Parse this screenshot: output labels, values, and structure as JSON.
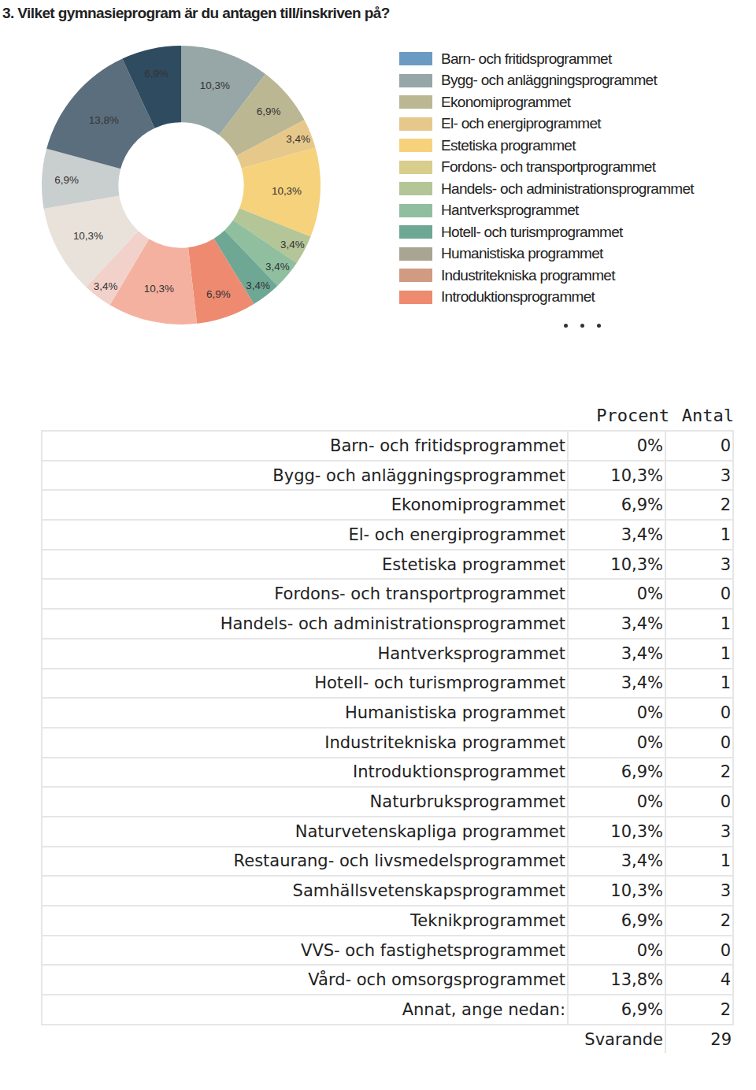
{
  "chart_data": {
    "type": "pie",
    "title": "3. Vilket gymnasieprogram är du antagen till/inskriven på?",
    "categories": [
      "Barn- och fritidsprogrammet",
      "Bygg- och anläggningsprogrammet",
      "Ekonomiprogrammet",
      "El- och energiprogrammet",
      "Estetiska programmet",
      "Fordons- och transportprogrammet",
      "Handels- och administrationsprogrammet",
      "Hantverksprogrammet",
      "Hotell- och turismprogrammet",
      "Humanistiska programmet",
      "Industritekniska programmet",
      "Introduktionsprogrammet",
      "Naturbruksprogrammet",
      "Naturvetenskapliga programmet",
      "Restaurang- och livsmedelsprogrammet",
      "Samhällsvetenskapsprogrammet",
      "Teknikprogrammet",
      "VVS- och fastighetsprogrammet",
      "Vård- och omsorgsprogrammet",
      "Annat, ange nedan:"
    ],
    "values": [
      0,
      10.3,
      6.9,
      3.4,
      10.3,
      0,
      3.4,
      3.4,
      3.4,
      0,
      0,
      6.9,
      0,
      10.3,
      3.4,
      10.3,
      6.9,
      0,
      13.8,
      6.9
    ],
    "value_labels": [
      null,
      "10,3%",
      "6,9%",
      "3,4%",
      "10,3%",
      null,
      "3,4%",
      "3,4%",
      "3,4%",
      null,
      null,
      "6,9%",
      null,
      "10,3%",
      "3,4%",
      "10,3%",
      "6,9%",
      null,
      "13,8%",
      "6,9%"
    ],
    "colors": [
      "#6b9bc3",
      "#97a6a6",
      "#bbb793",
      "#e7c88b",
      "#f6d27c",
      "#d9cd8b",
      "#b4c597",
      "#8fbf9f",
      "#6fa795",
      "#a9a593",
      "#d19a82",
      "#ee8a70",
      "#a7c9a0",
      "#f4b19f",
      "#f1d1c9",
      "#e9e2db",
      "#c9cece",
      "#8aa0b0",
      "#5b6e7d",
      "#2f4b5f"
    ],
    "data_labels": true
  },
  "table": {
    "header": [
      "Procent",
      "Antal"
    ],
    "rows": [
      [
        "Barn- och fritidsprogrammet",
        "0%",
        0
      ],
      [
        "Bygg- och anläggningsprogrammet",
        "10,3%",
        3
      ],
      [
        "Ekonomiprogrammet",
        "6,9%",
        2
      ],
      [
        "El- och energiprogrammet",
        "3,4%",
        1
      ],
      [
        "Estetiska programmet",
        "10,3%",
        3
      ],
      [
        "Fordons- och transportprogrammet",
        "0%",
        0
      ],
      [
        "Handels- och administrationsprogrammet",
        "3,4%",
        1
      ],
      [
        "Hantverksprogrammet",
        "3,4%",
        1
      ],
      [
        "Hotell- och turismprogrammet",
        "3,4%",
        1
      ],
      [
        "Humanistiska programmet",
        "0%",
        0
      ],
      [
        "Industritekniska programmet",
        "0%",
        0
      ],
      [
        "Introduktionsprogrammet",
        "6,9%",
        2
      ],
      [
        "Naturbruksprogrammet",
        "0%",
        0
      ],
      [
        "Naturvetenskapliga programmet",
        "10,3%",
        3
      ],
      [
        "Restaurang- och livsmedelsprogrammet",
        "3,4%",
        1
      ],
      [
        "Samhällsvetenskapsprogrammet",
        "10,3%",
        3
      ],
      [
        "Teknikprogrammet",
        "6,9%",
        2
      ],
      [
        "VVS- och fastighetsprogrammet",
        "0%",
        0
      ],
      [
        "Vård- och omsorgsprogrammet",
        "13,8%",
        4
      ],
      [
        "Annat, ange nedan:",
        "6,9%",
        2
      ]
    ],
    "footer": [
      "Svarande",
      29
    ]
  }
}
